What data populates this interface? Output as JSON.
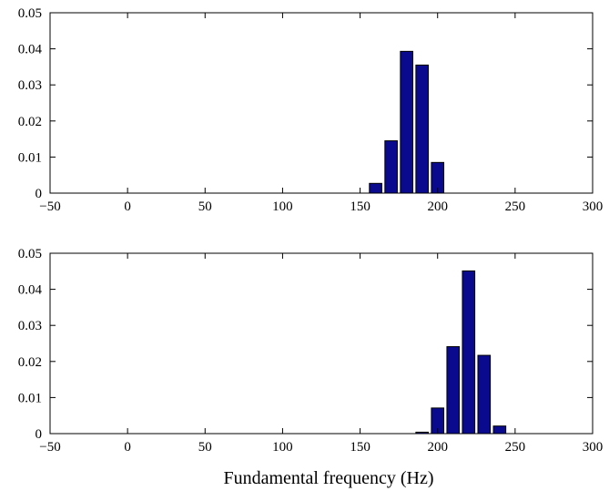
{
  "figure": {
    "xlabel": "Fundamental frequency (Hz)"
  },
  "colors": {
    "bar_fill": "#0a0a8f",
    "bar_edge": "#000000",
    "axes": "#000000"
  },
  "chart_data": [
    {
      "type": "bar",
      "title": "",
      "xlabel": "",
      "ylabel": "",
      "xlim": [
        -50,
        300
      ],
      "ylim": [
        0,
        0.05
      ],
      "xticks": [
        -50,
        0,
        50,
        100,
        150,
        200,
        250,
        300
      ],
      "xtick_labels": [
        "−50",
        "0",
        "50",
        "100",
        "150",
        "200",
        "250",
        "300"
      ],
      "yticks": [
        0,
        0.01,
        0.02,
        0.03,
        0.04,
        0.05
      ],
      "ytick_labels": [
        "0",
        "0.01",
        "0.02",
        "0.03",
        "0.04",
        "0.05"
      ],
      "grid": false,
      "bar_width": 8,
      "x": [
        160,
        170,
        180,
        190,
        200
      ],
      "values": [
        0.0027,
        0.0145,
        0.0393,
        0.0355,
        0.0085
      ]
    },
    {
      "type": "bar",
      "title": "",
      "xlabel": "Fundamental frequency (Hz)",
      "ylabel": "",
      "xlim": [
        -50,
        300
      ],
      "ylim": [
        0,
        0.05
      ],
      "xticks": [
        -50,
        0,
        50,
        100,
        150,
        200,
        250,
        300
      ],
      "xtick_labels": [
        "−50",
        "0",
        "50",
        "100",
        "150",
        "200",
        "250",
        "300"
      ],
      "yticks": [
        0,
        0.01,
        0.02,
        0.03,
        0.04,
        0.05
      ],
      "ytick_labels": [
        "0",
        "0.01",
        "0.02",
        "0.03",
        "0.04",
        "0.05"
      ],
      "grid": false,
      "bar_width": 8,
      "x": [
        190,
        200,
        210,
        220,
        230,
        240
      ],
      "values": [
        0.0004,
        0.0071,
        0.0241,
        0.0451,
        0.0217,
        0.0021
      ]
    }
  ]
}
